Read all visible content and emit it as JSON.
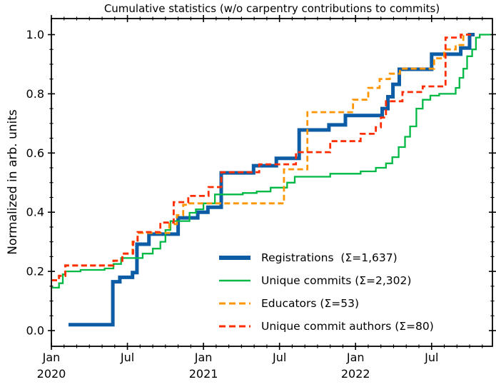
{
  "title": "Cumulative statistics (w/o carpentry contributions to commits)",
  "chart_data": {
    "type": "line",
    "subtype": "cumulative-step",
    "title": "Cumulative statistics (w/o carpentry contributions to commits)",
    "xlabel": "",
    "ylabel": "Normalized in arb. units",
    "grid": false,
    "legend_position": "lower-right-inside",
    "x_axis": {
      "unit": "months-since-Jan-2020",
      "range": [
        0,
        34.8
      ],
      "minor_tick_every": 1,
      "major_ticks": [
        {
          "m": 0,
          "label": "Jan",
          "year": "2020"
        },
        {
          "m": 6,
          "label": "Jul",
          "year": ""
        },
        {
          "m": 12,
          "label": "Jan",
          "year": "2021"
        },
        {
          "m": 18,
          "label": "Jul",
          "year": ""
        },
        {
          "m": 24,
          "label": "Jan",
          "year": "2022"
        },
        {
          "m": 30,
          "label": "Jul",
          "year": ""
        }
      ]
    },
    "y_axis": {
      "range": [
        -0.053,
        1.054
      ],
      "minor_tick_every": 0.05,
      "major_ticks": [
        0.0,
        0.2,
        0.4,
        0.6,
        0.8,
        1.0
      ],
      "tick_labels": [
        "0.0",
        "0.2",
        "0.4",
        "0.6",
        "0.8",
        "1.0"
      ]
    },
    "series": [
      {
        "name": "registrations",
        "legend_label": "Registrations  (Σ=1,637)",
        "total": "1,637",
        "color": "#0C5DA5",
        "style": "solid",
        "line_width": 5,
        "end_month": 33.4,
        "points": [
          [
            1.35,
            0.02
          ],
          [
            4.85,
            0.165
          ],
          [
            5.4,
            0.18
          ],
          [
            6.4,
            0.196
          ],
          [
            6.75,
            0.292
          ],
          [
            7.7,
            0.326
          ],
          [
            10.0,
            0.381
          ],
          [
            11.55,
            0.4
          ],
          [
            12.35,
            0.417
          ],
          [
            13.4,
            0.533
          ],
          [
            15.95,
            0.557
          ],
          [
            17.75,
            0.582
          ],
          [
            19.55,
            0.678
          ],
          [
            21.9,
            0.695
          ],
          [
            23.2,
            0.727
          ],
          [
            26.1,
            0.75
          ],
          [
            26.55,
            0.79
          ],
          [
            26.95,
            0.832
          ],
          [
            27.45,
            0.883
          ],
          [
            30.0,
            0.934
          ],
          [
            32.3,
            0.955
          ],
          [
            33.0,
            1.0
          ]
        ]
      },
      {
        "name": "unique-commits",
        "legend_label": "Unique commits (Σ=2,302)",
        "total": "2,302",
        "color": "#00B945",
        "style": "solid",
        "line_width": 2.3,
        "end_month": 34.65,
        "points": [
          [
            0,
            0.145
          ],
          [
            0.6,
            0.16
          ],
          [
            0.9,
            0.19
          ],
          [
            1.1,
            0.2
          ],
          [
            2.3,
            0.205
          ],
          [
            4.2,
            0.21
          ],
          [
            4.9,
            0.225
          ],
          [
            5.5,
            0.245
          ],
          [
            7.2,
            0.26
          ],
          [
            8.0,
            0.277
          ],
          [
            8.6,
            0.3
          ],
          [
            9.0,
            0.34
          ],
          [
            9.4,
            0.37
          ],
          [
            10.9,
            0.398
          ],
          [
            11.4,
            0.41
          ],
          [
            12.0,
            0.43
          ],
          [
            12.9,
            0.46
          ],
          [
            15.1,
            0.465
          ],
          [
            16.2,
            0.47
          ],
          [
            17.3,
            0.483
          ],
          [
            18.6,
            0.5
          ],
          [
            19.2,
            0.52
          ],
          [
            22.0,
            0.53
          ],
          [
            24.4,
            0.538
          ],
          [
            25.6,
            0.55
          ],
          [
            26.4,
            0.565
          ],
          [
            26.9,
            0.586
          ],
          [
            27.4,
            0.62
          ],
          [
            27.9,
            0.655
          ],
          [
            28.3,
            0.69
          ],
          [
            28.8,
            0.75
          ],
          [
            29.3,
            0.78
          ],
          [
            29.9,
            0.794
          ],
          [
            30.6,
            0.8
          ],
          [
            31.9,
            0.82
          ],
          [
            32.2,
            0.854
          ],
          [
            32.5,
            0.885
          ],
          [
            32.8,
            0.927
          ],
          [
            33.2,
            0.95
          ],
          [
            33.5,
            0.99
          ],
          [
            33.8,
            1.0
          ]
        ]
      },
      {
        "name": "educators",
        "legend_label": "Educators (Σ=53)",
        "total": "53",
        "color": "#FF9500",
        "style": "dashed",
        "line_width": 2.8,
        "end_month": 32.9,
        "points": [
          [
            0,
            0.17
          ],
          [
            0.6,
            0.185
          ],
          [
            1.1,
            0.22
          ],
          [
            4.9,
            0.236
          ],
          [
            5.6,
            0.26
          ],
          [
            6.4,
            0.3
          ],
          [
            6.8,
            0.33
          ],
          [
            9.3,
            0.36
          ],
          [
            9.9,
            0.39
          ],
          [
            10.4,
            0.425
          ],
          [
            10.8,
            0.43
          ],
          [
            18.35,
            0.545
          ],
          [
            20.2,
            0.738
          ],
          [
            23.8,
            0.78
          ],
          [
            25.0,
            0.82
          ],
          [
            25.9,
            0.85
          ],
          [
            26.7,
            0.868
          ],
          [
            27.5,
            0.885
          ],
          [
            30.2,
            0.92
          ],
          [
            31.0,
            0.95
          ],
          [
            31.9,
            0.965
          ],
          [
            32.5,
            1.0
          ]
        ]
      },
      {
        "name": "unique-commit-authors",
        "legend_label": "Unique commit authors (Σ=80)",
        "total": "80",
        "color": "#FF2C00",
        "style": "dashed",
        "line_width": 2.8,
        "end_month": 33.1,
        "points": [
          [
            0,
            0.17
          ],
          [
            0.6,
            0.185
          ],
          [
            1.1,
            0.22
          ],
          [
            4.9,
            0.236
          ],
          [
            5.6,
            0.26
          ],
          [
            6.45,
            0.3
          ],
          [
            6.8,
            0.333
          ],
          [
            8.6,
            0.365
          ],
          [
            9.65,
            0.434
          ],
          [
            10.8,
            0.455
          ],
          [
            12.4,
            0.485
          ],
          [
            13.4,
            0.535
          ],
          [
            16.4,
            0.562
          ],
          [
            19.3,
            0.603
          ],
          [
            22.0,
            0.64
          ],
          [
            24.4,
            0.665
          ],
          [
            25.6,
            0.687
          ],
          [
            26.0,
            0.72
          ],
          [
            26.4,
            0.775
          ],
          [
            27.7,
            0.806
          ],
          [
            29.3,
            0.825
          ],
          [
            31.1,
            0.99
          ],
          [
            32.3,
            1.0
          ]
        ]
      }
    ]
  }
}
